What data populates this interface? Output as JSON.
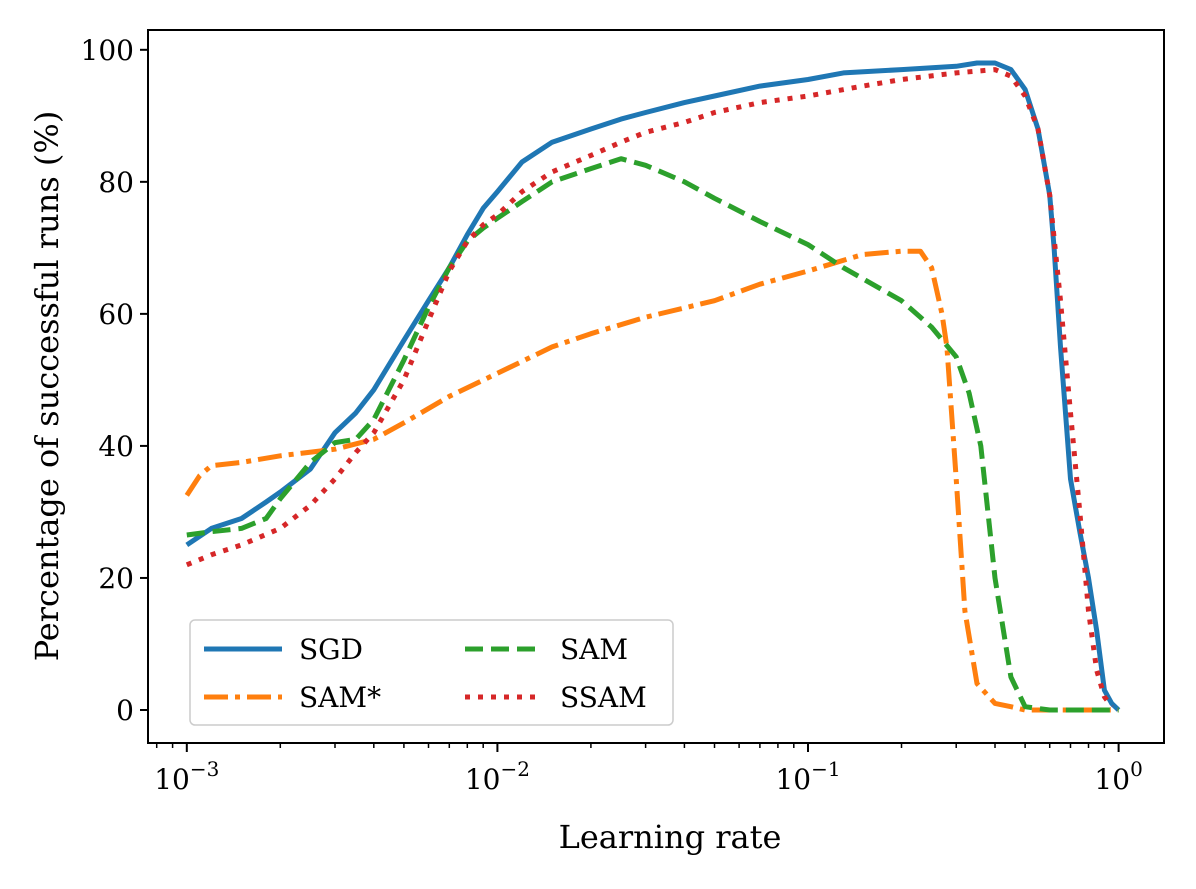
{
  "chart_data": {
    "type": "line",
    "title": "",
    "xlabel": "Learning rate",
    "ylabel": "Percentage of successful runs (%)",
    "xscale": "log",
    "xlim": [
      0.00075,
      1.4
    ],
    "ylim": [
      -5,
      103
    ],
    "grid": false,
    "legend_position": "lower-left",
    "legend_columns": 2,
    "xticks": [
      {
        "value": 0.001,
        "base": "10",
        "exp": "−3"
      },
      {
        "value": 0.01,
        "base": "10",
        "exp": "−2"
      },
      {
        "value": 0.1,
        "base": "10",
        "exp": "−1"
      },
      {
        "value": 1,
        "base": "10",
        "exp": "0"
      }
    ],
    "yticks": [
      0,
      20,
      40,
      60,
      80,
      100
    ],
    "series": [
      {
        "name": "SGD",
        "color": "#1f77b4",
        "style": "solid",
        "x": [
          0.001,
          0.0012,
          0.0015,
          0.0018,
          0.002,
          0.0025,
          0.003,
          0.0035,
          0.004,
          0.005,
          0.006,
          0.007,
          0.008,
          0.009,
          0.01,
          0.012,
          0.015,
          0.02,
          0.025,
          0.03,
          0.04,
          0.05,
          0.07,
          0.1,
          0.13,
          0.2,
          0.3,
          0.35,
          0.4,
          0.45,
          0.5,
          0.55,
          0.6,
          0.62,
          0.65,
          0.7,
          0.75,
          0.8,
          0.85,
          0.9,
          0.95,
          1.0
        ],
        "y": [
          25,
          27.5,
          29,
          31.5,
          33,
          36.5,
          42,
          45,
          48.5,
          56,
          62,
          67,
          72,
          76,
          78.5,
          83,
          86,
          88,
          89.5,
          90.5,
          92,
          93,
          94.5,
          95.5,
          96.5,
          97,
          97.5,
          98,
          98,
          97,
          94,
          88,
          78,
          70,
          55,
          35,
          27,
          20,
          12,
          3,
          1,
          0
        ]
      },
      {
        "name": "SAM*",
        "color": "#ff7f0e",
        "style": "dashdot",
        "x": [
          0.001,
          0.0011,
          0.0012,
          0.0015,
          0.002,
          0.003,
          0.004,
          0.005,
          0.007,
          0.01,
          0.015,
          0.02,
          0.03,
          0.05,
          0.07,
          0.1,
          0.15,
          0.2,
          0.23,
          0.25,
          0.27,
          0.28,
          0.3,
          0.32,
          0.35,
          0.4,
          0.45,
          0.5,
          0.7,
          1.0
        ],
        "y": [
          32.5,
          35.5,
          37,
          37.5,
          38.5,
          39.5,
          41,
          43.5,
          47.5,
          51,
          55,
          57,
          59.5,
          62,
          64.5,
          66.5,
          69,
          69.5,
          69.5,
          67,
          60,
          55,
          35,
          15,
          4,
          1,
          0.5,
          0,
          0,
          0
        ]
      },
      {
        "name": "SAM",
        "color": "#2ca02c",
        "style": "dashed",
        "x": [
          0.001,
          0.0012,
          0.0015,
          0.0018,
          0.002,
          0.0025,
          0.003,
          0.0035,
          0.004,
          0.005,
          0.006,
          0.007,
          0.008,
          0.009,
          0.01,
          0.012,
          0.015,
          0.02,
          0.025,
          0.03,
          0.04,
          0.05,
          0.07,
          0.1,
          0.13,
          0.2,
          0.25,
          0.3,
          0.33,
          0.36,
          0.4,
          0.45,
          0.5,
          0.6,
          0.7,
          1.0
        ],
        "y": [
          26.5,
          27,
          27.5,
          29,
          32,
          37.5,
          40.5,
          41,
          44,
          53,
          61,
          67,
          71,
          73,
          74.5,
          77,
          80,
          82,
          83.5,
          82.5,
          80,
          77.5,
          74,
          70.5,
          67,
          62,
          58,
          53.5,
          48,
          40,
          20,
          5,
          0.5,
          0,
          0,
          0
        ]
      },
      {
        "name": "SSAM",
        "color": "#d62728",
        "style": "dotted",
        "x": [
          0.001,
          0.0012,
          0.0015,
          0.002,
          0.0025,
          0.003,
          0.0035,
          0.004,
          0.005,
          0.006,
          0.007,
          0.008,
          0.009,
          0.01,
          0.012,
          0.015,
          0.02,
          0.025,
          0.03,
          0.04,
          0.05,
          0.07,
          0.1,
          0.15,
          0.2,
          0.3,
          0.4,
          0.45,
          0.5,
          0.55,
          0.6,
          0.65,
          0.7,
          0.75,
          0.8,
          0.85,
          0.9,
          0.95
        ],
        "y": [
          22,
          23.5,
          25,
          27.5,
          31,
          35,
          39,
          42,
          50,
          59,
          66.5,
          71,
          73.5,
          75,
          78.5,
          81.5,
          84,
          86,
          87.5,
          89,
          90.5,
          92,
          93,
          94.5,
          95.5,
          96.5,
          97,
          96,
          93,
          88,
          78,
          62,
          45,
          30,
          15,
          6,
          2,
          0.5
        ]
      }
    ]
  }
}
